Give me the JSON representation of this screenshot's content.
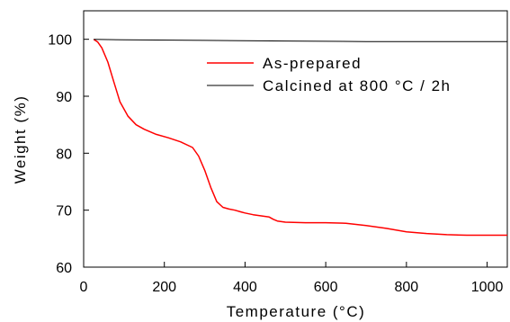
{
  "chart_data": {
    "type": "line",
    "xlabel": "Temperature (°C)",
    "ylabel": "Weight (%)",
    "xlim": [
      0,
      1050
    ],
    "ylim": [
      60,
      105
    ],
    "xticks": [
      0,
      200,
      400,
      600,
      800,
      1000
    ],
    "yticks": [
      60,
      70,
      80,
      90,
      100
    ],
    "grid": false,
    "legend_position": "top-right",
    "series": [
      {
        "name": "As-prepared",
        "color": "#ff0000",
        "x": [
          25,
          35,
          45,
          60,
          75,
          90,
          110,
          130,
          150,
          180,
          210,
          240,
          270,
          285,
          300,
          315,
          330,
          345,
          360,
          375,
          390,
          400,
          420,
          440,
          460,
          470,
          480,
          500,
          550,
          600,
          650,
          700,
          750,
          800,
          850,
          900,
          950,
          1000,
          1050
        ],
        "y": [
          100,
          99.5,
          98.5,
          96,
          92.5,
          89,
          86.5,
          85,
          84.2,
          83.3,
          82.7,
          82,
          81,
          79.5,
          77,
          74,
          71.5,
          70.5,
          70.2,
          70,
          69.7,
          69.5,
          69.2,
          69.0,
          68.8,
          68.4,
          68.1,
          67.9,
          67.8,
          67.8,
          67.7,
          67.3,
          66.8,
          66.2,
          65.9,
          65.7,
          65.6,
          65.6,
          65.6
        ]
      },
      {
        "name": "Calcined at 800 °C / 2h",
        "color": "#000000",
        "x": [
          25,
          100,
          300,
          500,
          700,
          900,
          1050
        ],
        "y": [
          100,
          99.9,
          99.8,
          99.7,
          99.6,
          99.6,
          99.6
        ]
      }
    ]
  }
}
